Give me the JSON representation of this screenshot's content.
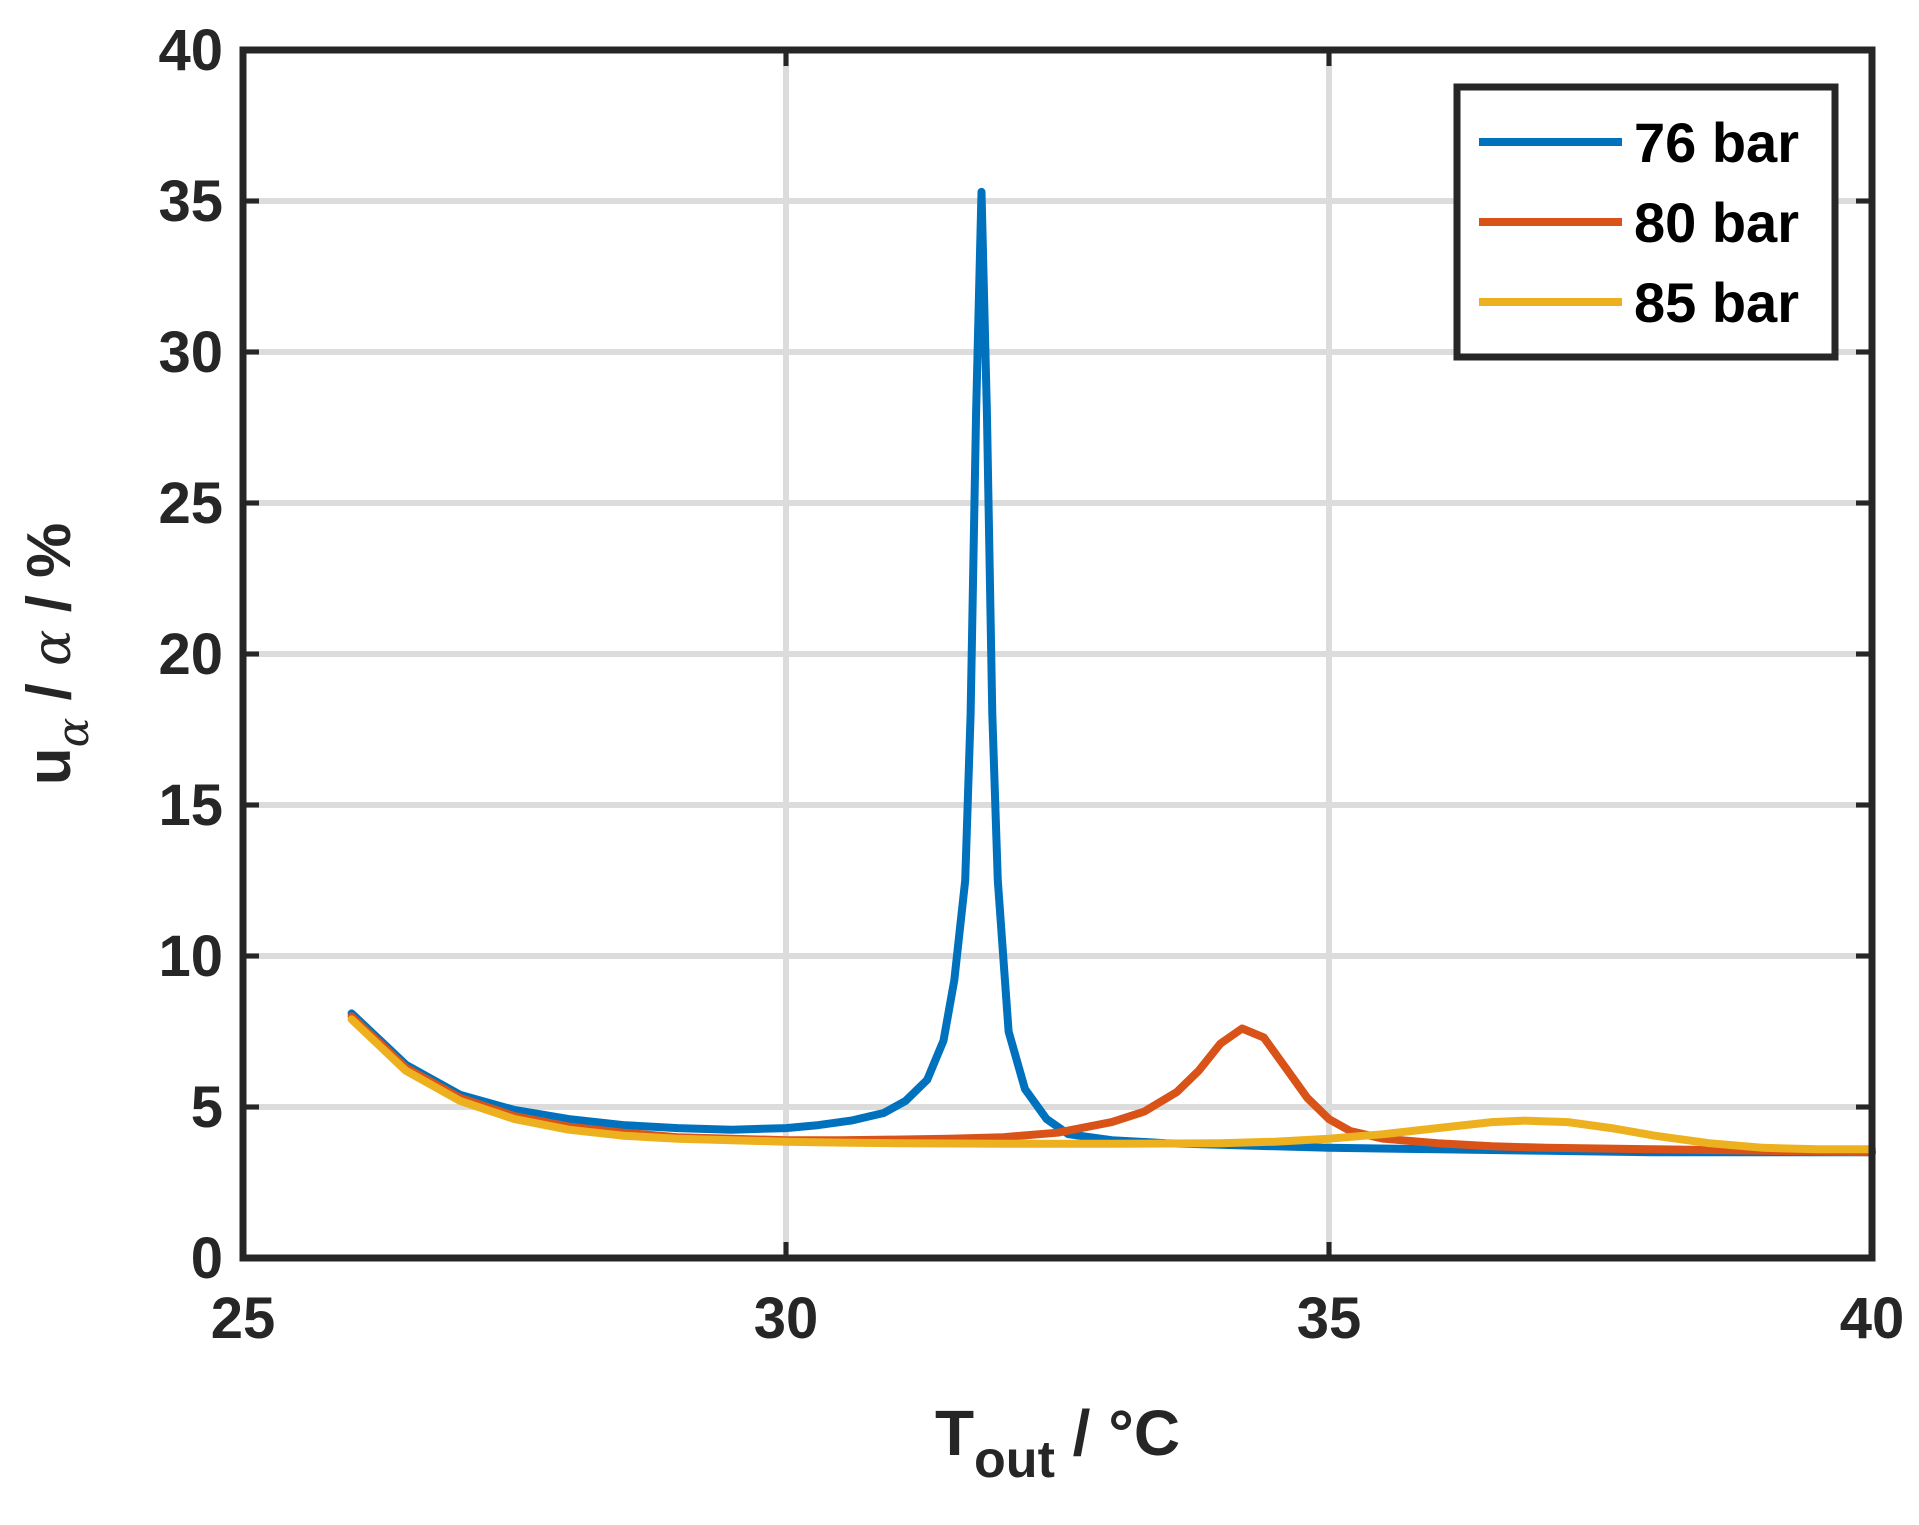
{
  "chart_data": {
    "type": "line",
    "xlabel": {
      "main": "T",
      "sub": "out",
      "rest": " / °C"
    },
    "ylabel": {
      "main": "u",
      "sub1": "α",
      "mid": " / ",
      "italic": "α",
      "rest": " / %"
    },
    "xlim": [
      25,
      40
    ],
    "ylim": [
      0,
      40
    ],
    "xticks": [
      25,
      30,
      35,
      40
    ],
    "yticks": [
      0,
      5,
      10,
      15,
      20,
      25,
      30,
      35,
      40
    ],
    "grid": true,
    "legend_position": "top-right",
    "series": [
      {
        "name": "76 bar",
        "color": "#0072BD",
        "x": [
          26,
          26.5,
          27,
          27.5,
          28,
          28.5,
          29,
          29.5,
          30,
          30.3,
          30.6,
          30.9,
          31.1,
          31.3,
          31.45,
          31.55,
          31.65,
          31.7,
          31.75,
          31.8,
          31.85,
          31.9,
          31.95,
          32.05,
          32.2,
          32.4,
          32.6,
          33,
          33.5,
          34,
          35,
          36,
          37,
          38,
          39,
          40
        ],
        "y": [
          8.1,
          6.4,
          5.4,
          4.9,
          4.6,
          4.4,
          4.3,
          4.25,
          4.3,
          4.4,
          4.55,
          4.8,
          5.2,
          5.9,
          7.2,
          9.2,
          12.5,
          18,
          28,
          35.3,
          28,
          18,
          12.5,
          7.5,
          5.6,
          4.6,
          4.1,
          3.9,
          3.8,
          3.75,
          3.65,
          3.6,
          3.55,
          3.5,
          3.5,
          3.5
        ]
      },
      {
        "name": "80 bar",
        "color": "#D95319",
        "x": [
          26,
          26.5,
          27,
          27.5,
          28,
          28.5,
          29,
          29.5,
          30,
          30.5,
          31,
          31.5,
          32,
          32.5,
          33,
          33.3,
          33.6,
          33.8,
          34,
          34.2,
          34.4,
          34.6,
          34.8,
          35,
          35.2,
          35.5,
          36,
          36.5,
          37,
          38,
          39,
          40
        ],
        "y": [
          8.0,
          6.3,
          5.3,
          4.7,
          4.35,
          4.15,
          4.0,
          3.95,
          3.9,
          3.9,
          3.92,
          3.95,
          4.0,
          4.15,
          4.5,
          4.85,
          5.5,
          6.2,
          7.1,
          7.6,
          7.3,
          6.3,
          5.3,
          4.6,
          4.2,
          3.95,
          3.8,
          3.7,
          3.65,
          3.6,
          3.55,
          3.5
        ]
      },
      {
        "name": "85 bar",
        "color": "#EDB120",
        "x": [
          26,
          26.5,
          27,
          27.5,
          28,
          28.5,
          29,
          29.5,
          30,
          30.5,
          31,
          32,
          33,
          34,
          34.5,
          35,
          35.5,
          36,
          36.5,
          36.8,
          37.2,
          37.6,
          38,
          38.5,
          39,
          39.5,
          40
        ],
        "y": [
          7.9,
          6.2,
          5.2,
          4.6,
          4.25,
          4.05,
          3.95,
          3.9,
          3.85,
          3.82,
          3.8,
          3.78,
          3.78,
          3.8,
          3.85,
          3.95,
          4.1,
          4.3,
          4.5,
          4.55,
          4.5,
          4.3,
          4.05,
          3.8,
          3.65,
          3.6,
          3.6
        ]
      }
    ]
  }
}
